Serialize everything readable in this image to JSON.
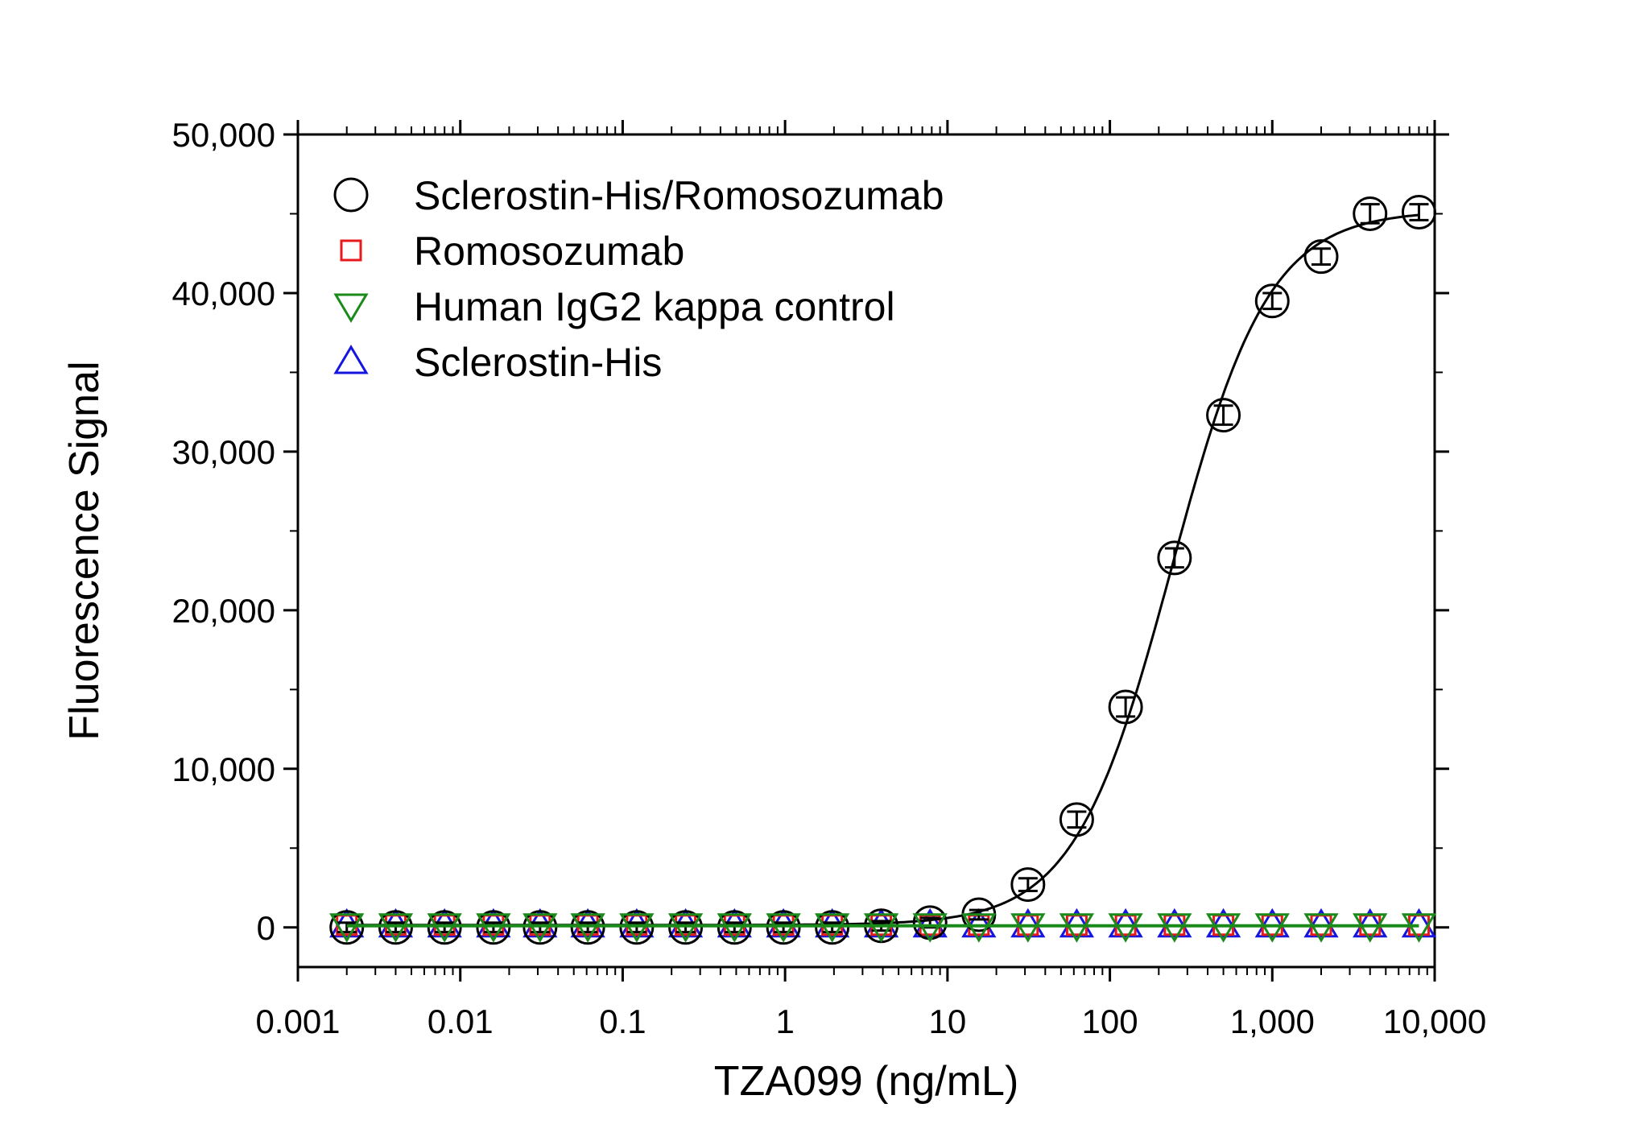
{
  "chart_data": {
    "type": "scatter",
    "x_scale": "log",
    "xlim": [
      0.001,
      10000
    ],
    "ylim": [
      -2500,
      50000
    ],
    "xlabel": "TZA099 (ng/mL)",
    "ylabel": "Fluorescence Signal",
    "grid": false,
    "legend_position": "top-left",
    "x_tick_values": [
      0.001,
      0.01,
      0.1,
      1,
      10,
      100,
      1000,
      10000
    ],
    "x_tick_labels": [
      "0.001",
      "0.01",
      "0.1",
      "1",
      "10",
      "100",
      "1,000",
      "10,000"
    ],
    "y_tick_values": [
      0,
      10000,
      20000,
      30000,
      40000,
      50000
    ],
    "y_tick_labels": [
      "0",
      "10,000",
      "20,000",
      "30,000",
      "40,000",
      "50,000"
    ],
    "x": [
      0.002,
      0.004,
      0.008,
      0.016,
      0.031,
      0.061,
      0.122,
      0.244,
      0.488,
      0.977,
      1.95,
      3.91,
      7.81,
      15.6,
      31.3,
      62.5,
      125,
      250,
      500,
      1000,
      2000,
      4000,
      8000
    ],
    "series": [
      {
        "name": "Sclerostin-His/Romosozumab",
        "marker": "circle",
        "color": "#000000",
        "values": [
          0,
          0,
          0,
          0,
          0,
          0,
          0,
          0,
          0,
          0,
          0,
          100,
          300,
          800,
          2700,
          6800,
          13900,
          23300,
          32300,
          39500,
          42300,
          45000,
          45100
        ],
        "errors": [
          300,
          300,
          300,
          300,
          300,
          300,
          300,
          300,
          300,
          300,
          300,
          300,
          300,
          300,
          400,
          500,
          600,
          600,
          600,
          500,
          500,
          600,
          500
        ],
        "fit": {
          "model": "4PL",
          "bottom": 150,
          "top": 45200,
          "ec50": 240,
          "hill": 1.45
        }
      },
      {
        "name": "Romosozumab",
        "marker": "square",
        "color": "#e8191b",
        "values": [
          150,
          150,
          150,
          150,
          150,
          150,
          150,
          150,
          150,
          150,
          150,
          150,
          150,
          150,
          150,
          150,
          150,
          150,
          150,
          150,
          150,
          150,
          150
        ]
      },
      {
        "name": "Human IgG2 kappa control",
        "marker": "triangle-down",
        "color": "#1a8a1a",
        "values": [
          100,
          100,
          100,
          100,
          100,
          100,
          100,
          100,
          100,
          100,
          100,
          100,
          100,
          100,
          100,
          100,
          100,
          100,
          100,
          100,
          100,
          100,
          100
        ],
        "fit": {
          "model": "flat",
          "value": 100
        }
      },
      {
        "name": "Sclerostin-His",
        "marker": "triangle-up",
        "color": "#1515e0",
        "values": [
          150,
          150,
          150,
          150,
          150,
          150,
          150,
          150,
          150,
          150,
          150,
          150,
          150,
          150,
          150,
          150,
          150,
          150,
          150,
          150,
          150,
          150,
          150
        ]
      }
    ]
  }
}
